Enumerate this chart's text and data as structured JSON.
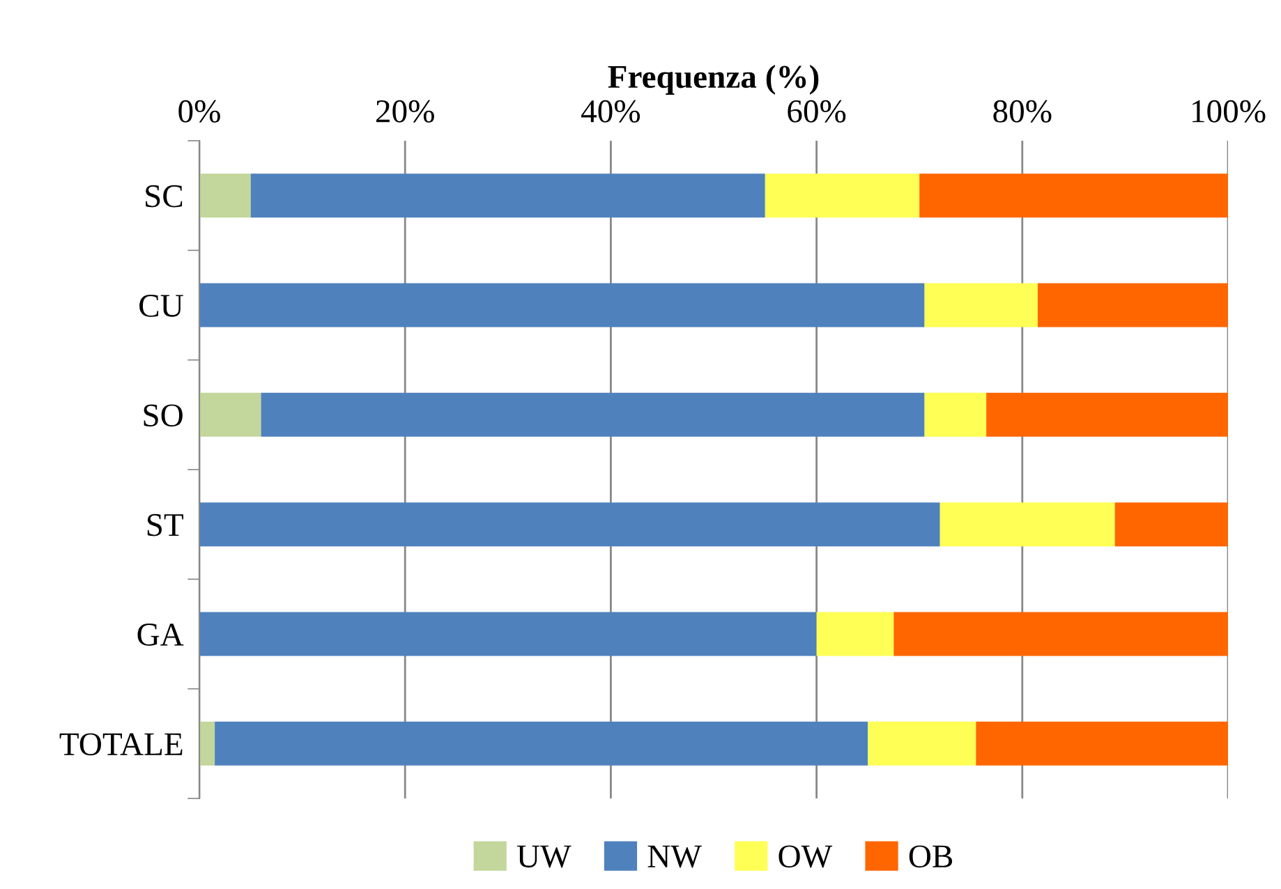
{
  "chart_data": {
    "type": "bar",
    "orientation": "horizontal",
    "stacked": true,
    "xlabel": "Frequenza (%)",
    "categories": [
      "SC",
      "CU",
      "SO",
      "ST",
      "GA",
      "TOTALE"
    ],
    "series": [
      {
        "name": "UW",
        "color": "#c3d69b",
        "values": [
          5,
          null,
          6,
          null,
          null,
          1.5
        ]
      },
      {
        "name": "NW",
        "color": "#4f81bd",
        "values": [
          50,
          70.5,
          64.5,
          72,
          60,
          63.5
        ]
      },
      {
        "name": "OW",
        "color": "#ffff55",
        "values": [
          15,
          11,
          6,
          17,
          7.5,
          10.5
        ]
      },
      {
        "name": "OB",
        "color": "#ff6600",
        "values": [
          30,
          18.5,
          23.5,
          11,
          32.5,
          24.5
        ]
      }
    ],
    "xlim": [
      0,
      100
    ],
    "xticks": [
      {
        "value": 0,
        "label": "0%"
      },
      {
        "value": 20,
        "label": "20%"
      },
      {
        "value": 40,
        "label": "40%"
      },
      {
        "value": 60,
        "label": "60%"
      },
      {
        "value": 80,
        "label": "80%"
      },
      {
        "value": 100,
        "label": "100%"
      }
    ],
    "grid": "x",
    "legend": "bottom"
  }
}
